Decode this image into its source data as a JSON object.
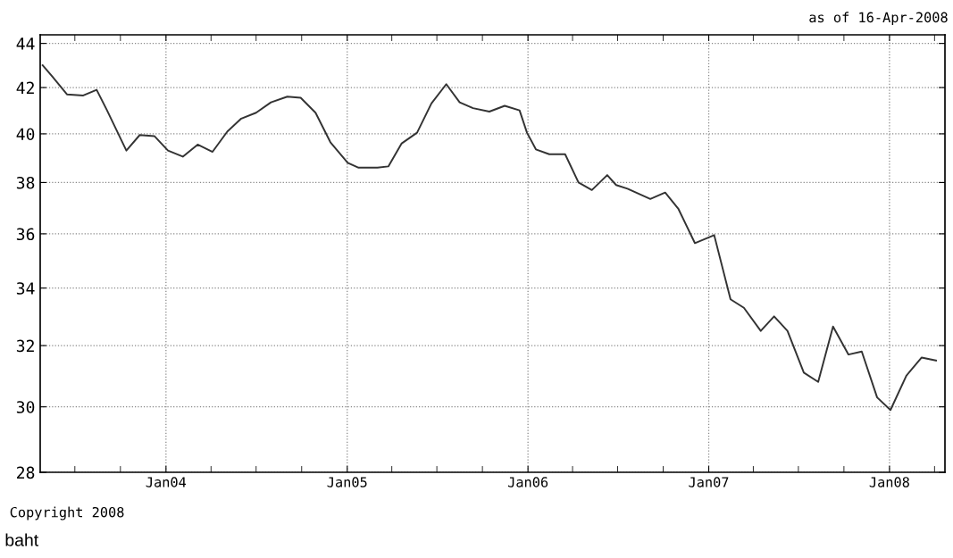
{
  "chart_data": {
    "type": "line",
    "log": true,
    "grid": true,
    "marker": "none",
    "line_style": "solid",
    "annotations": [
      "as of 16-Apr-2008",
      "Copyright 2008",
      "baht"
    ],
    "xlim": [
      "2003-04-22",
      "2008-04-22"
    ],
    "ylim": [
      28,
      44.4
    ],
    "yticks": [
      28,
      30,
      32,
      34,
      36,
      38,
      40,
      42,
      44
    ],
    "xticks": [
      {
        "value": "2003-07-01",
        "label": null
      },
      {
        "value": "2003-10-01",
        "label": null
      },
      {
        "value": "2004-01-01",
        "label": "Jan04"
      },
      {
        "value": "2004-04-01",
        "label": null
      },
      {
        "value": "2004-07-01",
        "label": null
      },
      {
        "value": "2004-10-01",
        "label": null
      },
      {
        "value": "2005-01-01",
        "label": "Jan05"
      },
      {
        "value": "2005-04-01",
        "label": null
      },
      {
        "value": "2005-07-01",
        "label": null
      },
      {
        "value": "2005-10-01",
        "label": null
      },
      {
        "value": "2006-01-01",
        "label": "Jan06"
      },
      {
        "value": "2006-04-01",
        "label": null
      },
      {
        "value": "2006-07-01",
        "label": null
      },
      {
        "value": "2006-10-01",
        "label": null
      },
      {
        "value": "2007-01-01",
        "label": "Jan07"
      },
      {
        "value": "2007-04-01",
        "label": null
      },
      {
        "value": "2007-07-01",
        "label": null
      },
      {
        "value": "2007-10-01",
        "label": null
      },
      {
        "value": "2008-01-01",
        "label": "Jan08"
      },
      {
        "value": "2008-04-01",
        "label": null
      }
    ],
    "x": [
      "2003-04-27",
      "2003-05-16",
      "2003-06-15",
      "2003-07-18",
      "2003-08-14",
      "2003-09-04",
      "2003-10-13",
      "2003-11-09",
      "2003-12-09",
      "2004-01-05",
      "2004-02-04",
      "2004-03-05",
      "2004-04-04",
      "2004-05-04",
      "2004-06-01",
      "2004-07-01",
      "2004-07-31",
      "2004-09-02",
      "2004-09-29",
      "2004-10-29",
      "2004-11-28",
      "2005-01-02",
      "2005-01-24",
      "2005-03-03",
      "2005-03-25",
      "2005-04-21",
      "2005-05-22",
      "2005-06-20",
      "2005-07-20",
      "2005-08-16",
      "2005-09-12",
      "2005-10-15",
      "2005-11-15",
      "2005-12-15",
      "2005-12-30",
      "2006-01-17",
      "2006-02-13",
      "2006-03-17",
      "2006-04-13",
      "2006-05-10",
      "2006-06-10",
      "2006-06-28",
      "2006-07-21",
      "2006-09-05",
      "2006-10-05",
      "2006-11-01",
      "2006-12-04",
      "2007-01-12",
      "2007-02-14",
      "2007-03-13",
      "2007-04-16",
      "2007-05-13",
      "2007-06-09",
      "2007-07-12",
      "2007-08-10",
      "2007-09-09",
      "2007-10-10",
      "2007-11-06",
      "2007-12-07",
      "2008-01-03",
      "2008-02-04",
      "2008-03-06",
      "2008-04-04"
    ],
    "series": [
      {
        "color": "#333333",
        "values": [
          43.0,
          42.5,
          41.7,
          41.65,
          41.9,
          41.0,
          39.3,
          39.95,
          39.9,
          39.3,
          39.05,
          39.55,
          39.25,
          40.1,
          40.65,
          40.9,
          41.35,
          41.6,
          41.55,
          40.9,
          39.65,
          38.8,
          38.6,
          38.6,
          38.65,
          39.6,
          40.05,
          41.3,
          42.15,
          41.35,
          41.1,
          40.95,
          41.2,
          41.0,
          40.05,
          39.35,
          39.15,
          39.15,
          38.0,
          37.7,
          38.3,
          37.9,
          37.75,
          37.35,
          37.6,
          36.95,
          35.65,
          35.95,
          33.6,
          33.3,
          32.5,
          33.0,
          32.5,
          31.1,
          30.8,
          32.65,
          31.7,
          31.8,
          30.3,
          29.9,
          31.0,
          31.6,
          31.5
        ]
      }
    ]
  }
}
